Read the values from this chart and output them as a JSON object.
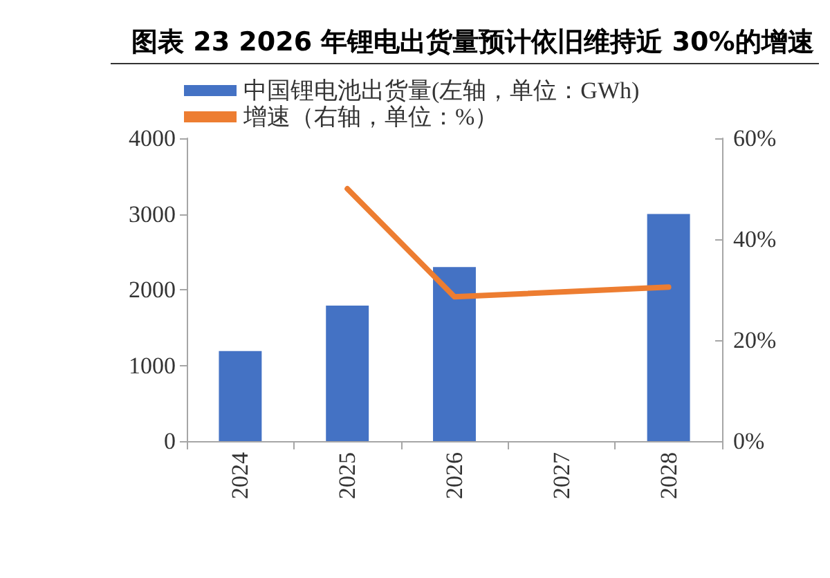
{
  "chart_data": {
    "type": "bar",
    "title": "图表 23 2026 年锂电出货量预计依旧维持近 30%的增速",
    "categories": [
      "2024",
      "2025",
      "2026",
      "2027",
      "2028"
    ],
    "series": [
      {
        "name": "中国锂电池出货量(左轴，单位：GWh)",
        "color": "#4472c4",
        "values": [
          1190,
          1790,
          2300,
          null,
          3000
        ]
      },
      {
        "name": "增速（右轴，单位：%）",
        "type": "line",
        "axis": "y2",
        "color": "#ed7d31",
        "values": [
          null,
          50,
          28.6,
          null,
          30.5
        ]
      }
    ],
    "ylim": [
      0,
      4000
    ],
    "yticks": [
      0,
      1000,
      2000,
      3000,
      4000
    ],
    "y2lim": [
      0,
      60
    ],
    "y2ticks": [
      {
        "value": 0,
        "label": "0%"
      },
      {
        "value": 20,
        "label": "20%"
      },
      {
        "value": 40,
        "label": "40%"
      },
      {
        "value": 60,
        "label": "60%"
      }
    ],
    "grid": false,
    "legend": "top left",
    "marker": "none",
    "line_style": "solid"
  }
}
